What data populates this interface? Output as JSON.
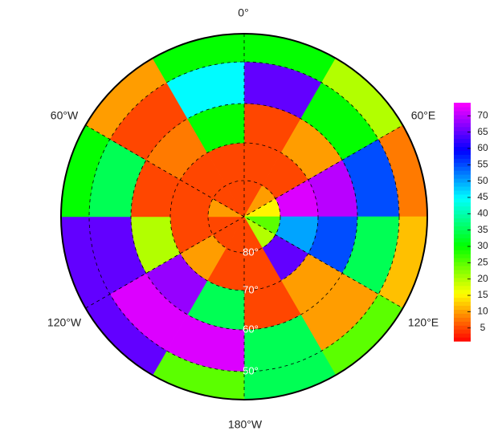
{
  "chart_data": {
    "type": "polar_heatmap",
    "lon_labels": [
      "0°",
      "60°E",
      "120°E",
      "180°W",
      "120°W",
      "60°W"
    ],
    "lat_labels": [
      "80°",
      "70°",
      "60°",
      "50°"
    ],
    "values": [
      [
        5,
        10,
        15,
        25,
        20,
        5,
        5,
        5,
        5,
        10,
        5,
        5
      ],
      [
        5,
        5,
        72,
        50,
        65,
        5,
        5,
        10,
        5,
        5,
        5,
        5
      ],
      [
        5,
        10,
        70,
        55,
        10,
        5,
        35,
        68,
        20,
        5,
        8,
        30
      ],
      [
        65,
        30,
        55,
        35,
        10,
        35,
        72,
        72,
        65,
        35,
        5,
        45
      ],
      [
        30,
        20,
        8,
        12,
        25,
        35,
        25,
        65,
        65,
        30,
        10,
        30
      ]
    ],
    "clim": [
      1,
      74
    ],
    "cticks": [
      5,
      10,
      15,
      20,
      25,
      30,
      35,
      40,
      45,
      50,
      55,
      60,
      65,
      70
    ]
  }
}
